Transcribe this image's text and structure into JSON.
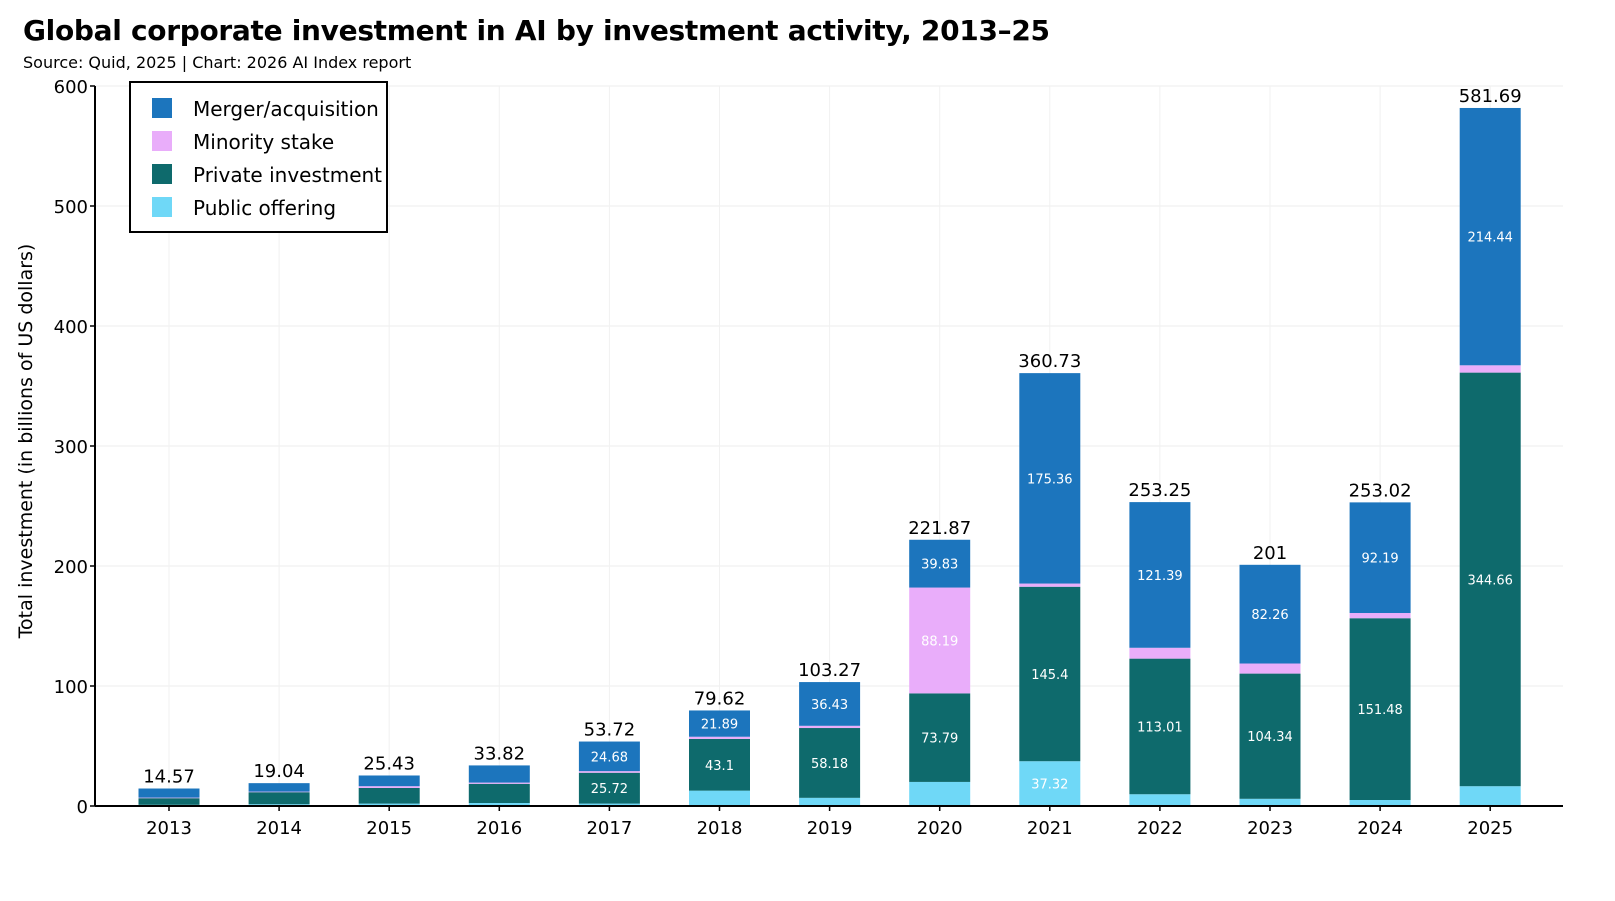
{
  "header": {
    "title": "Global corporate investment in AI by investment activity, 2013–25",
    "subtitle": "Source: Quid, 2025 | Chart: 2026 AI Index report"
  },
  "chart_data": {
    "type": "bar",
    "stacked": true,
    "title": "Global corporate investment in AI by investment activity, 2013–25",
    "subtitle": "Source: Quid, 2025 | Chart: 2026 AI Index report",
    "xlabel": "",
    "ylabel": "Total investment (in billions of US dollars)",
    "ylim": [
      0,
      600
    ],
    "yticks": [
      0,
      100,
      200,
      300,
      400,
      500,
      600
    ],
    "grid": true,
    "legend_position": "top-left",
    "categories": [
      "2013",
      "2014",
      "2015",
      "2016",
      "2017",
      "2018",
      "2019",
      "2020",
      "2021",
      "2022",
      "2023",
      "2024",
      "2025"
    ],
    "series": [
      {
        "name": "Public offering",
        "color": "#6fd8f7",
        "values": [
          1.0,
          1.5,
          2.0,
          2.5,
          2.0,
          12.8,
          6.8,
          20.06,
          37.32,
          9.8,
          6.0,
          5.0,
          16.5
        ],
        "labels": [
          "",
          "",
          "",
          "",
          "",
          "",
          "",
          "",
          "37.32",
          "",
          "",
          "",
          ""
        ]
      },
      {
        "name": "Private investment",
        "color": "#0e6a6c",
        "values": [
          5.5,
          10.0,
          13.0,
          16.0,
          25.72,
          43.1,
          58.18,
          73.79,
          145.4,
          113.01,
          104.34,
          151.48,
          344.66
        ],
        "labels": [
          "",
          "",
          "",
          "",
          "25.72",
          "43.1",
          "58.18",
          "73.79",
          "145.4",
          "113.01",
          "104.34",
          "151.48",
          "344.66"
        ]
      },
      {
        "name": "Minority stake",
        "color": "#e9adfa",
        "values": [
          0.5,
          0.5,
          1.5,
          1.0,
          1.32,
          1.83,
          1.86,
          88.19,
          2.65,
          9.04,
          8.4,
          4.35,
          6.09
        ],
        "labels": [
          "",
          "",
          "",
          "",
          "",
          "",
          "",
          "88.19",
          "",
          "",
          "",
          "",
          ""
        ]
      },
      {
        "name": "Merger/acquisition",
        "color": "#1c75bd",
        "values": [
          7.57,
          7.04,
          8.93,
          14.32,
          24.68,
          21.89,
          36.43,
          39.83,
          175.36,
          121.39,
          82.26,
          92.19,
          214.44
        ],
        "labels": [
          "",
          "",
          "",
          "",
          "24.68",
          "21.89",
          "36.43",
          "39.83",
          "175.36",
          "121.39",
          "82.26",
          "92.19",
          "214.44"
        ]
      }
    ],
    "totals": [
      "14.57",
      "19.04",
      "25.43",
      "33.82",
      "53.72",
      "79.62",
      "103.27",
      "221.87",
      "360.73",
      "253.25",
      "201",
      "253.02",
      "581.69"
    ],
    "legend": [
      {
        "name": "Merger/acquisition",
        "color": "#1c75bd"
      },
      {
        "name": "Minority stake",
        "color": "#e9adfa"
      },
      {
        "name": "Private investment",
        "color": "#0e6a6c"
      },
      {
        "name": "Public offering",
        "color": "#6fd8f7"
      }
    ]
  }
}
